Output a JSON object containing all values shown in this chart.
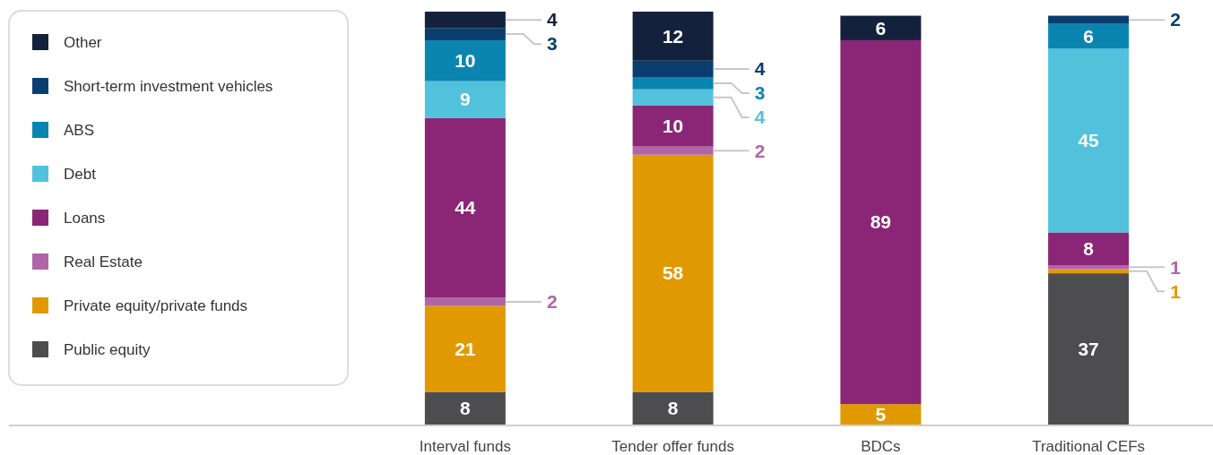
{
  "chart_data": {
    "type": "bar",
    "stacked": true,
    "data_labels": true,
    "legend": "left",
    "grid": false,
    "categories": [
      "Interval funds",
      "Tender offer funds",
      "BDCs",
      "Traditional CEFs"
    ],
    "series": [
      {
        "name": "Public equity",
        "color": "#4d4d4f",
        "values": [
          8,
          8,
          null,
          37
        ]
      },
      {
        "name": "Private equity/private funds",
        "color": "#e09a00",
        "values": [
          21,
          58,
          5,
          1
        ]
      },
      {
        "name": "Real Estate",
        "color": "#b065a6",
        "values": [
          2,
          2,
          null,
          1
        ]
      },
      {
        "name": "Loans",
        "color": "#8a2675",
        "values": [
          44,
          10,
          89,
          8
        ]
      },
      {
        "name": "Debt",
        "color": "#52c1dc",
        "values": [
          9,
          4,
          null,
          45
        ]
      },
      {
        "name": "ABS",
        "color": "#0a85b0",
        "values": [
          10,
          3,
          null,
          6
        ]
      },
      {
        "name": "Short-term investment vehicles",
        "color": "#0b3d6e",
        "values": [
          3,
          4,
          null,
          2
        ]
      },
      {
        "name": "Other",
        "color": "#14213d",
        "values": [
          4,
          12,
          6,
          null
        ]
      }
    ]
  }
}
